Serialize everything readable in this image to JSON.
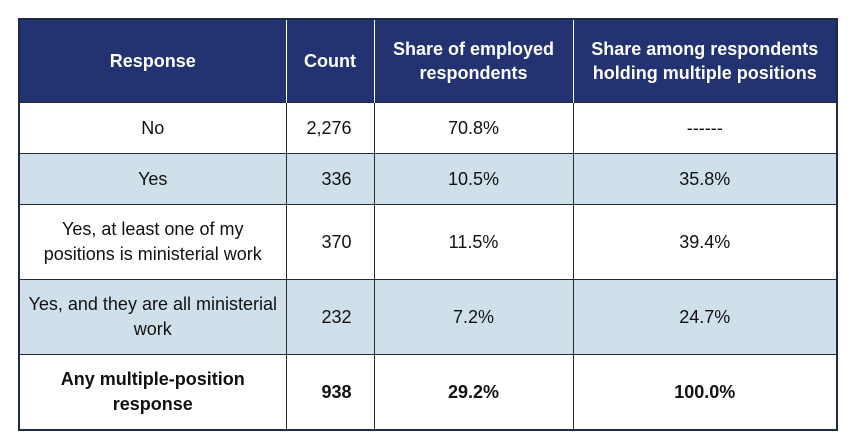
{
  "table": {
    "headers": {
      "response": "Response",
      "count": "Count",
      "share_employed": "Share of employed respondents",
      "share_multiple": "Share among respondents holding multiple positions"
    },
    "rows": [
      {
        "response": "No",
        "count": "2,276",
        "share_employed": "70.8%",
        "share_multiple": "------"
      },
      {
        "response": "Yes",
        "count": "336",
        "share_employed": "10.5%",
        "share_multiple": "35.8%"
      },
      {
        "response": "Yes, at least one of my positions is ministerial work",
        "count": "370",
        "share_employed": "11.5%",
        "share_multiple": "39.4%"
      },
      {
        "response": "Yes, and they are all ministerial work",
        "count": "232",
        "share_employed": "7.2%",
        "share_multiple": "24.7%"
      },
      {
        "response": "Any multiple-position response",
        "count": "938",
        "share_employed": "29.2%",
        "share_multiple": "100.0%"
      }
    ]
  },
  "colors": {
    "header_bg": "#233371",
    "stripe_bg": "#cfe0ea"
  }
}
